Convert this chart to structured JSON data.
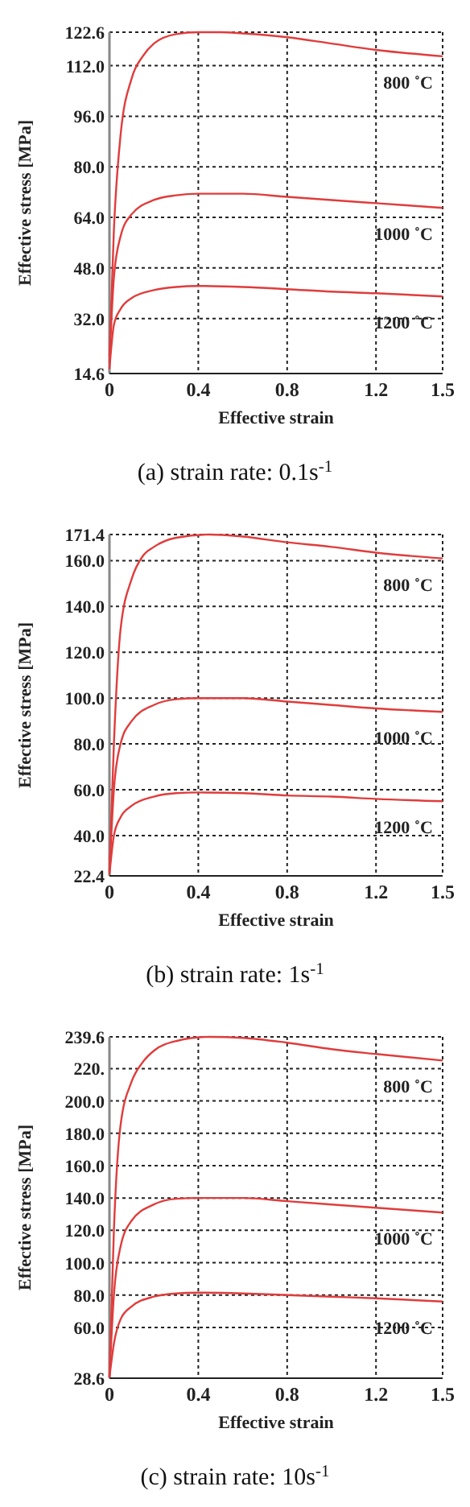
{
  "chart_data": [
    {
      "type": "line",
      "title": "(a) strain rate: 0.1s$^{-1}$",
      "xlabel": "Effective strain",
      "ylabel": "Effective stress [MPa]",
      "grid": true,
      "line_style": "solid",
      "marker": "none",
      "xlim": [
        0,
        1.5
      ],
      "xticks": [
        0,
        0.4,
        0.8,
        1.2,
        1.5
      ],
      "ylim": [
        14.6,
        122.6
      ],
      "yticks": [
        14.6,
        {
          "value": 32,
          "label": "32.0"
        },
        {
          "value": 48,
          "label": "48.0"
        },
        {
          "value": 64,
          "label": "64.0"
        },
        {
          "value": 80,
          "label": "80.0"
        },
        {
          "value": 96,
          "label": "96.0"
        },
        {
          "value": 112,
          "label": "112.0"
        },
        122.6
      ],
      "series": [
        {
          "name": "800 ˚C",
          "color": "#e03c3c",
          "x": [
            0,
            0.02,
            0.05,
            0.1,
            0.15,
            0.2,
            0.3,
            0.4,
            0.5,
            0.6,
            0.8,
            1.0,
            1.2,
            1.5
          ],
          "values": [
            20,
            60,
            90,
            108,
            115,
            119,
            122,
            122.6,
            122.6,
            122.2,
            121,
            119,
            117,
            115
          ]
        },
        {
          "name": "1000 ˚C",
          "color": "#e03c3c",
          "x": [
            0,
            0.02,
            0.05,
            0.1,
            0.2,
            0.3,
            0.4,
            0.6,
            0.8,
            1.0,
            1.2,
            1.5
          ],
          "values": [
            18,
            45,
            58,
            65,
            69.5,
            71,
            71.5,
            71.5,
            70.5,
            69.5,
            68.5,
            67
          ]
        },
        {
          "name": "1200 ˚C",
          "color": "#e03c3c",
          "x": [
            0,
            0.02,
            0.05,
            0.1,
            0.2,
            0.3,
            0.4,
            0.6,
            0.8,
            1.0,
            1.2,
            1.5
          ],
          "values": [
            16,
            30,
            35,
            38.5,
            41,
            42,
            42.3,
            42,
            41.3,
            40.5,
            40,
            39
          ]
        }
      ]
    },
    {
      "type": "line",
      "title": "(b) strain rate: 1s$^{-1}$",
      "xlabel": "Effective strain",
      "ylabel": "Effective stress [MPa]",
      "grid": true,
      "line_style": "solid",
      "marker": "none",
      "xlim": [
        0,
        1.5
      ],
      "xticks": [
        0,
        0.4,
        0.8,
        1.2,
        1.5
      ],
      "ylim": [
        22.4,
        171.4
      ],
      "yticks": [
        22.4,
        {
          "value": 40,
          "label": "40.0"
        },
        {
          "value": 60,
          "label": "60.0"
        },
        {
          "value": 80,
          "label": "80.0"
        },
        {
          "value": 100,
          "label": "100.0"
        },
        {
          "value": 120,
          "label": "120.0"
        },
        {
          "value": 140,
          "label": "140.0"
        },
        {
          "value": 160,
          "label": "160.0"
        },
        171.4
      ],
      "series": [
        {
          "name": "800 ˚C",
          "color": "#e03c3c",
          "x": [
            0,
            0.02,
            0.05,
            0.1,
            0.15,
            0.2,
            0.3,
            0.45,
            0.6,
            0.8,
            1.0,
            1.2,
            1.5
          ],
          "values": [
            25,
            80,
            130,
            152,
            162,
            166,
            170,
            171.4,
            170.5,
            168,
            166,
            163.5,
            161
          ]
        },
        {
          "name": "1000 ˚C",
          "color": "#e03c3c",
          "x": [
            0,
            0.02,
            0.05,
            0.1,
            0.2,
            0.3,
            0.4,
            0.6,
            0.8,
            1.0,
            1.2,
            1.5
          ],
          "values": [
            24,
            60,
            80,
            90,
            97,
            99.5,
            100,
            100,
            98.5,
            97,
            95.5,
            94
          ]
        },
        {
          "name": "1200 ˚C",
          "color": "#e03c3c",
          "x": [
            0,
            0.02,
            0.05,
            0.1,
            0.2,
            0.3,
            0.4,
            0.6,
            0.8,
            1.0,
            1.2,
            1.5
          ],
          "values": [
            23,
            40,
            48,
            53,
            57,
            58.5,
            58.8,
            58.5,
            57.5,
            57,
            56,
            55
          ]
        }
      ]
    },
    {
      "type": "line",
      "title": "(c) strain rate: 10s$^{-1}$",
      "xlabel": "Effective strain",
      "ylabel": "Effective stress [MPa]",
      "grid": true,
      "line_style": "solid",
      "marker": "none",
      "xlim": [
        0,
        1.5
      ],
      "xticks": [
        0,
        0.4,
        0.8,
        1.2,
        1.5
      ],
      "ylim": [
        28.6,
        239.6
      ],
      "yticks": [
        28.6,
        {
          "value": 60,
          "label": "60.0"
        },
        {
          "value": 80,
          "label": "80.0"
        },
        {
          "value": 100,
          "label": "100.0"
        },
        {
          "value": 120,
          "label": "120.0"
        },
        {
          "value": 140,
          "label": "140.0"
        },
        {
          "value": 160,
          "label": "160.0"
        },
        {
          "value": 180,
          "label": "180.0"
        },
        {
          "value": 200,
          "label": "200.0"
        },
        {
          "value": 220,
          "label": "220."
        },
        239.6
      ],
      "series": [
        {
          "name": "800 ˚C",
          "color": "#e03c3c",
          "x": [
            0,
            0.02,
            0.05,
            0.1,
            0.15,
            0.2,
            0.3,
            0.45,
            0.6,
            0.8,
            1.0,
            1.2,
            1.5
          ],
          "values": [
            30,
            120,
            185,
            212,
            224,
            231,
            237,
            239.6,
            239,
            236,
            232,
            229,
            225
          ]
        },
        {
          "name": "1000 ˚C",
          "color": "#e03c3c",
          "x": [
            0,
            0.02,
            0.05,
            0.1,
            0.2,
            0.3,
            0.4,
            0.6,
            0.8,
            1.0,
            1.2,
            1.5
          ],
          "values": [
            29,
            80,
            110,
            126,
            136,
            139.5,
            140,
            140,
            138,
            136,
            134,
            131
          ]
        },
        {
          "name": "1200 ˚C",
          "color": "#e03c3c",
          "x": [
            0,
            0.02,
            0.05,
            0.1,
            0.2,
            0.3,
            0.4,
            0.6,
            0.8,
            1.0,
            1.2,
            1.5
          ],
          "values": [
            29,
            50,
            65,
            73,
            79,
            81,
            81.5,
            81,
            80,
            79,
            78,
            76
          ]
        }
      ]
    }
  ]
}
